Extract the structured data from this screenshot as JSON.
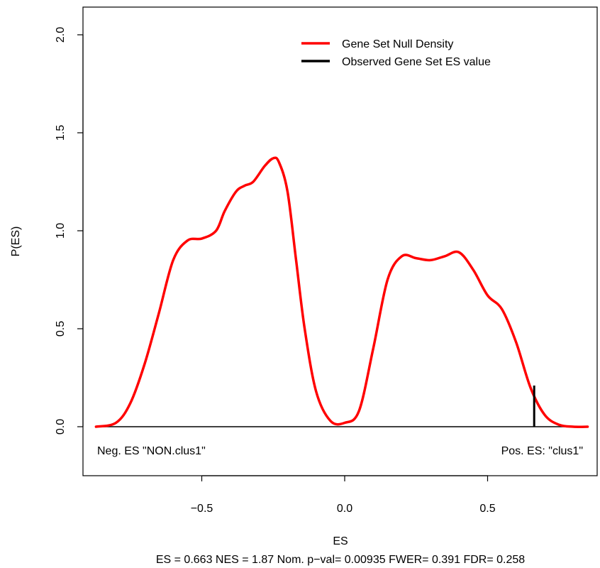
{
  "chart_data": {
    "type": "line",
    "xlabel": "ES",
    "ylabel": "P(ES)",
    "xlim": [
      -0.85,
      0.85
    ],
    "ylim": [
      -0.25,
      2.15
    ],
    "x_ticks": [
      -0.5,
      0.0,
      0.5
    ],
    "x_tick_labels": [
      "−0.5",
      "0.0",
      "0.5"
    ],
    "y_ticks": [
      0.0,
      0.5,
      1.0,
      1.5,
      2.0
    ],
    "y_tick_labels": [
      "0.0",
      "0.5",
      "1.0",
      "1.5",
      "2.0"
    ],
    "grid": false,
    "legend_placement": "top-right",
    "legend": [
      {
        "label": "Gene Set Null Density",
        "color": "#ff0000"
      },
      {
        "label": "Observed Gene Set ES value",
        "color": "#000000"
      }
    ],
    "series": [
      {
        "name": "Gene Set Null Density",
        "color": "#ff0000",
        "x": [
          -0.87,
          -0.8,
          -0.75,
          -0.7,
          -0.65,
          -0.6,
          -0.55,
          -0.5,
          -0.45,
          -0.42,
          -0.38,
          -0.35,
          -0.32,
          -0.28,
          -0.25,
          -0.23,
          -0.2,
          -0.17,
          -0.14,
          -0.1,
          -0.05,
          0.0,
          0.05,
          0.1,
          0.15,
          0.2,
          0.25,
          0.3,
          0.35,
          0.4,
          0.45,
          0.5,
          0.55,
          0.6,
          0.65,
          0.7,
          0.75,
          0.8,
          0.85
        ],
        "y": [
          0.0,
          0.02,
          0.12,
          0.32,
          0.58,
          0.85,
          0.95,
          0.96,
          1.0,
          1.1,
          1.2,
          1.23,
          1.25,
          1.33,
          1.37,
          1.35,
          1.2,
          0.85,
          0.5,
          0.18,
          0.03,
          0.02,
          0.08,
          0.4,
          0.75,
          0.87,
          0.86,
          0.85,
          0.87,
          0.89,
          0.8,
          0.67,
          0.6,
          0.43,
          0.2,
          0.06,
          0.01,
          0.0,
          0.0
        ]
      }
    ],
    "observed_es": 0.663,
    "observed_es_height": 0.21,
    "neg_label": "Neg. ES \"NON.clus1\"",
    "pos_label": "Pos. ES: \"clus1\"",
    "stats_line": "ES = 0.663  NES = 1.87 Nom. p−val= 0.00935 FWER= 0.391 FDR= 0.258"
  }
}
